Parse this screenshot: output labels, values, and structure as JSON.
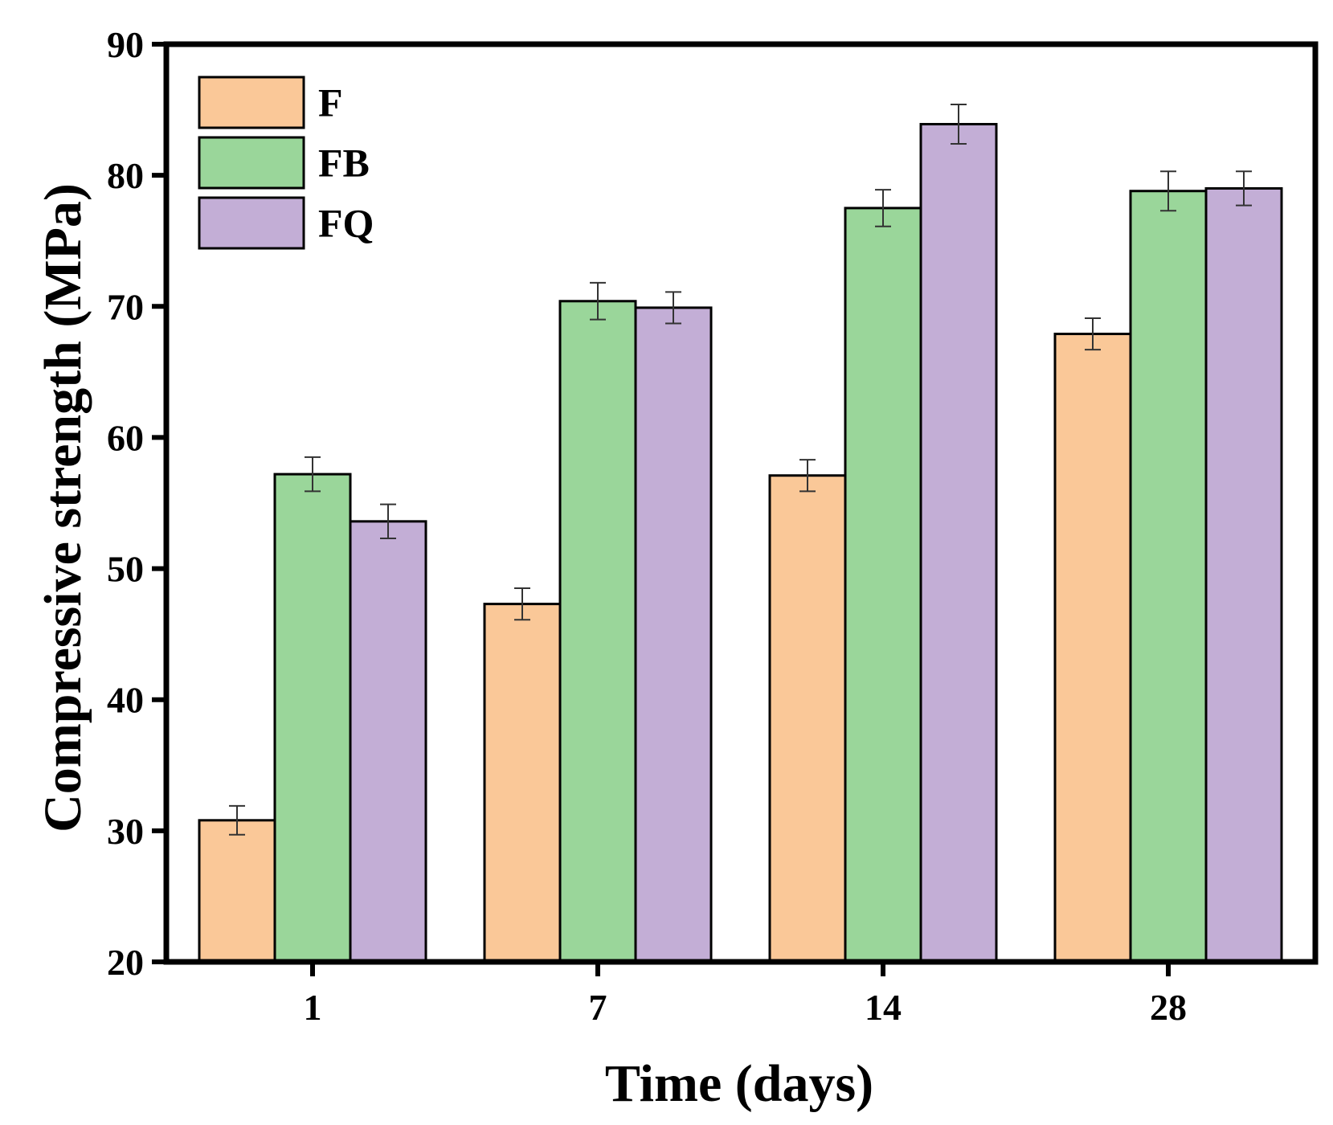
{
  "chart_data": {
    "type": "bar",
    "title": "",
    "xlabel": "Time (days)",
    "ylabel": "Compressive strength (MPa)",
    "categories": [
      "1",
      "7",
      "14",
      "28"
    ],
    "ylim": [
      20,
      90
    ],
    "yticks": [
      20,
      30,
      40,
      50,
      60,
      70,
      80,
      90
    ],
    "grid": false,
    "legend_position": "top-left",
    "series": [
      {
        "name": "F",
        "color": "#FAC898",
        "values": [
          30.8,
          47.3,
          57.1,
          67.9
        ],
        "errors": [
          1.1,
          1.2,
          1.2,
          1.2
        ]
      },
      {
        "name": "FB",
        "color": "#9AD69A",
        "values": [
          57.2,
          70.4,
          77.5,
          78.8
        ],
        "errors": [
          1.3,
          1.4,
          1.4,
          1.5
        ]
      },
      {
        "name": "FQ",
        "color": "#C3AED6",
        "values": [
          53.6,
          69.9,
          83.9,
          79.0
        ],
        "errors": [
          1.3,
          1.2,
          1.5,
          1.3
        ]
      }
    ]
  }
}
